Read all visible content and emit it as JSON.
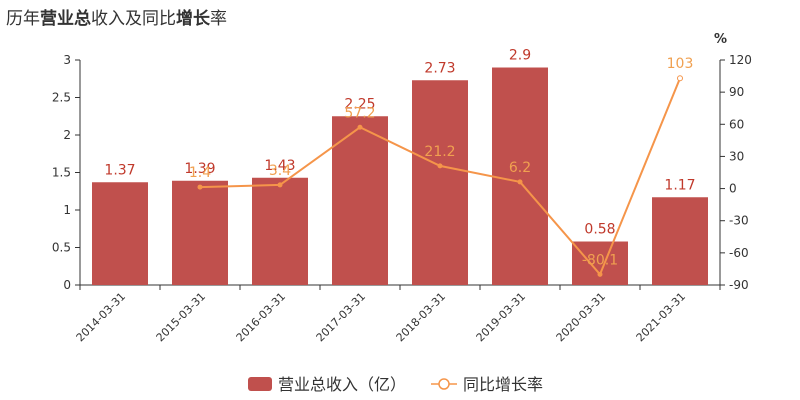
{
  "title": {
    "part1": "历年",
    "part2": "营业总",
    "part3": "收入及同比",
    "part4": "增长",
    "part5": "率"
  },
  "colors": {
    "bar": "#c0504d",
    "line": "#f5954a",
    "bar_label": "#c0392b",
    "line_label": "#f0a050",
    "axis": "#333333"
  },
  "chart_data": {
    "type": "bar",
    "categories": [
      "2014-03-31",
      "2015-03-31",
      "2016-03-31",
      "2017-03-31",
      "2018-03-31",
      "2019-03-31",
      "2020-03-31",
      "2021-03-31"
    ],
    "series": [
      {
        "name": "营业总收入（亿）",
        "type": "bar",
        "axis": "left",
        "values": [
          1.37,
          1.39,
          1.43,
          2.25,
          2.73,
          2.9,
          0.58,
          1.17
        ],
        "labels": [
          "1.37",
          "1.39",
          "1.43",
          "2.25",
          "2.73",
          "2.9",
          "0.58",
          "1.17"
        ]
      },
      {
        "name": "同比增长率",
        "type": "line",
        "axis": "right",
        "values": [
          null,
          1.4,
          3.4,
          57.2,
          21.2,
          6.2,
          -80.1,
          103
        ],
        "labels": [
          "",
          "1.4",
          "3.4",
          "57.2",
          "21.2",
          "6.2",
          "-80.1",
          "103"
        ]
      }
    ],
    "y_left": {
      "min": 0,
      "max": 3,
      "ticks": [
        "0",
        "0.5",
        "1",
        "1.5",
        "2",
        "2.5",
        "3"
      ]
    },
    "y_right": {
      "min": -90,
      "max": 120,
      "unit": "%",
      "ticks": [
        "-90",
        "-60",
        "-30",
        "0",
        "30",
        "60",
        "90",
        "120"
      ]
    },
    "grid": false,
    "legend_position": "bottom-center"
  }
}
